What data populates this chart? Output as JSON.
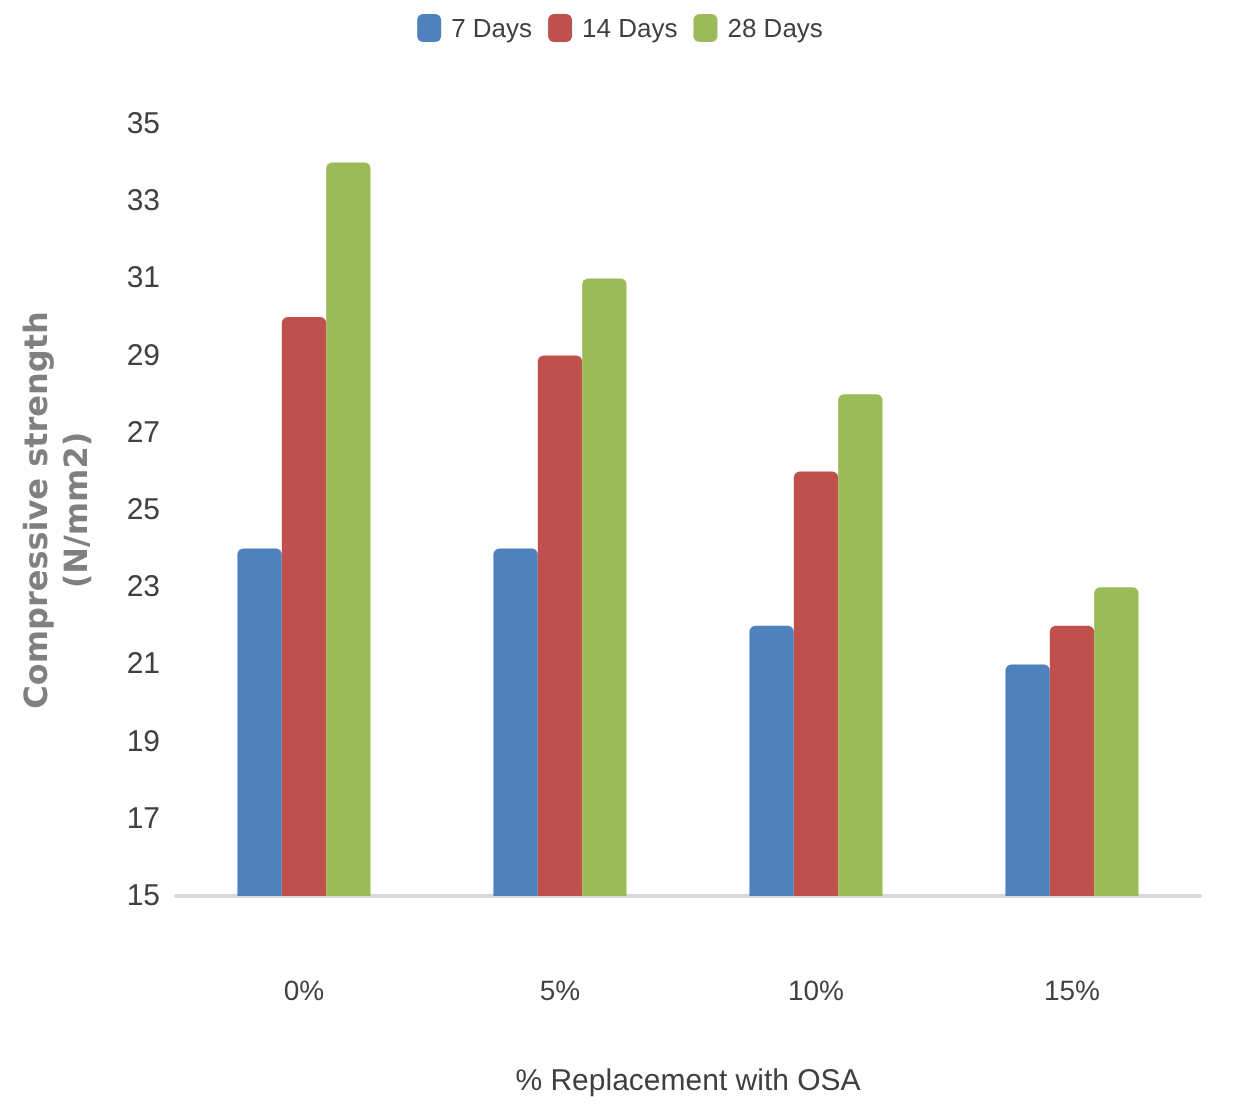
{
  "chart_data": {
    "type": "bar",
    "xlabel": "% Replacement with OSA",
    "ylabel": "Compressive strength\n(N/mm2)",
    "categories": [
      "0%",
      "5%",
      "10%",
      "15%"
    ],
    "series": [
      {
        "name": "7 Days",
        "color": "#4f81bd",
        "values": [
          24,
          24,
          22,
          21
        ]
      },
      {
        "name": "14 Days",
        "color": "#c0504d",
        "values": [
          30,
          29,
          26,
          22
        ]
      },
      {
        "name": "28 Days",
        "color": "#9bbb59",
        "values": [
          34,
          31,
          28,
          23
        ]
      }
    ],
    "ylim": [
      15,
      35
    ],
    "yticks": [
      15,
      17,
      19,
      21,
      23,
      25,
      27,
      29,
      31,
      33,
      35
    ],
    "grid": false,
    "legend": "top"
  }
}
